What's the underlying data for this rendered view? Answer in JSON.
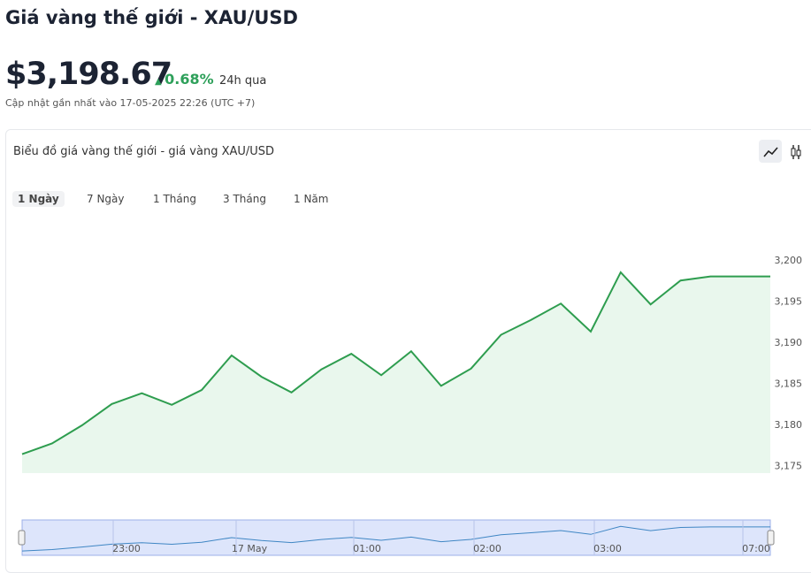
{
  "header": {
    "title": "Giá vàng thế giới - XAU/USD",
    "price": "$3,198.67",
    "change": "0.68%",
    "change_period": "24h qua",
    "updated": "Cập nhật gần nhất vào 17-05-2025 22:26 (UTC +7)"
  },
  "card": {
    "title": "Biểu đồ giá vàng thế giới - giá vàng XAU/USD",
    "tabs": [
      "1 Ngày",
      "7 Ngày",
      "1 Tháng",
      "3 Tháng",
      "1 Năm"
    ],
    "navigator_labels": [
      "23:00",
      "17 May",
      "01:00",
      "02:00",
      "03:00",
      "07:00"
    ]
  },
  "chart_data": {
    "type": "area",
    "color": "#2e9d4f",
    "values": [
      3176.5,
      3177.8,
      3180.0,
      3182.6,
      3183.9,
      3182.5,
      3184.3,
      3188.5,
      3185.9,
      3184.0,
      3186.8,
      3188.7,
      3186.1,
      3189.0,
      3184.8,
      3186.9,
      3191.0,
      3192.8,
      3194.8,
      3191.4,
      3198.6,
      3194.7,
      3197.6,
      3198.1,
      3198.1,
      3198.1
    ],
    "ylim": [
      3174.2,
      3205.9
    ],
    "yticks": [
      {
        "value": 3175,
        "label": "3,175"
      },
      {
        "value": 3180,
        "label": "3,180"
      },
      {
        "value": 3185,
        "label": "3,185"
      },
      {
        "value": 3190,
        "label": "3,190"
      },
      {
        "value": 3195,
        "label": "3,195"
      },
      {
        "value": 3200,
        "label": "3,200"
      }
    ]
  }
}
